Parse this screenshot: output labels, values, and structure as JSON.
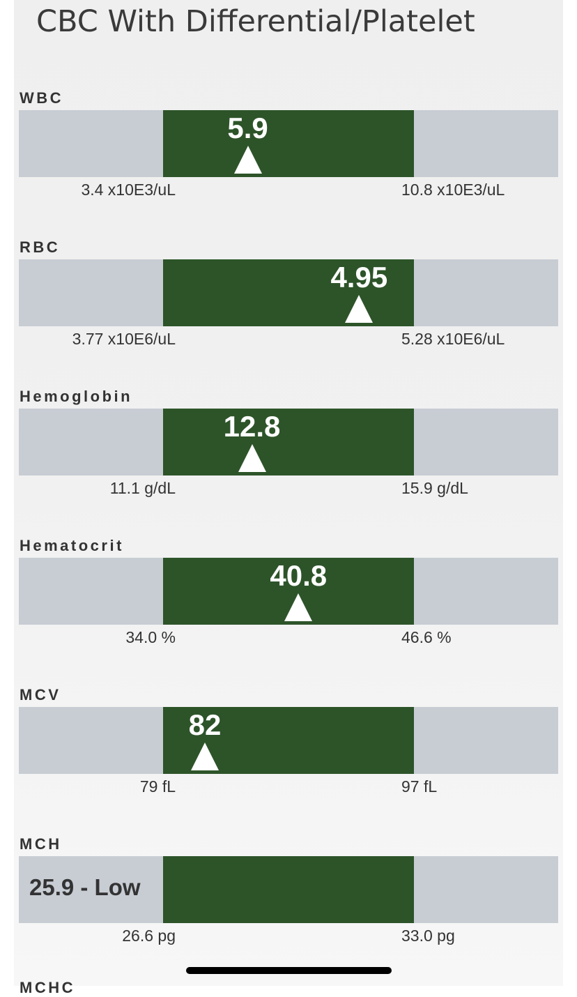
{
  "page": {
    "title": "CBC With Differential/Platelet",
    "next_label": "MCHC"
  },
  "colors": {
    "in_range": "#2d5429",
    "out_of_range": "#c8cdd4",
    "marker": "#ffffff",
    "text": "#333333"
  },
  "results": [
    {
      "label": "WBC",
      "value": "5.9",
      "value_num": 5.9,
      "flag": "",
      "low": "3.4 x10E3/uL",
      "low_num": 3.4,
      "high": "10.8 x10E3/uL",
      "high_num": 10.8
    },
    {
      "label": "RBC",
      "value": "4.95",
      "value_num": 4.95,
      "flag": "",
      "low": "3.77 x10E6/uL",
      "low_num": 3.77,
      "high": "5.28 x10E6/uL",
      "high_num": 5.28
    },
    {
      "label": "Hemoglobin",
      "value": "12.8",
      "value_num": 12.8,
      "flag": "",
      "low": "11.1 g/dL",
      "low_num": 11.1,
      "high": "15.9 g/dL",
      "high_num": 15.9
    },
    {
      "label": "Hematocrit",
      "value": "40.8",
      "value_num": 40.8,
      "flag": "",
      "low": "34.0 %",
      "low_num": 34.0,
      "high": "46.6 %",
      "high_num": 46.6
    },
    {
      "label": "MCV",
      "value": "82",
      "value_num": 82,
      "flag": "",
      "low": "79 fL",
      "low_num": 79,
      "high": "97 fL",
      "high_num": 97
    },
    {
      "label": "MCH",
      "value": "25.9 - Low",
      "value_num": 25.9,
      "flag": "low",
      "low": "26.6 pg",
      "low_num": 26.6,
      "high": "33.0 pg",
      "high_num": 33.0
    }
  ]
}
